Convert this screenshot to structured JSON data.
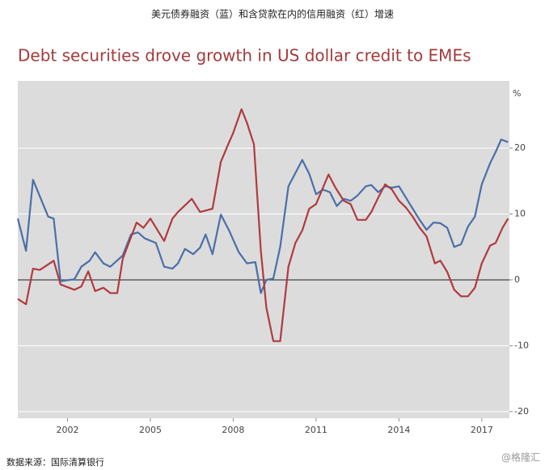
{
  "chart_data": {
    "type": "line",
    "caption": "美元债券融资（蓝）和含贷款在内的信用融资（红）增速",
    "title": "Debt securities drove growth in US dollar credit to EMEs",
    "y_label": "%",
    "source": "数据来源：国际清算银行",
    "watermark": "@格隆汇",
    "xlim": [
      2000.2,
      2018
    ],
    "xticks": [
      2002,
      2005,
      2008,
      2011,
      2014,
      2017
    ],
    "ylim": [
      -21,
      30.2
    ],
    "yticks": [
      -20,
      -10,
      0,
      10,
      20
    ],
    "grid": true,
    "series": [
      {
        "color": "#4a6fa8",
        "x": [
          2000.2,
          2000.5,
          2000.75,
          2001.3,
          2001.5,
          2001.75,
          2002.25,
          2002.5,
          2002.8,
          2003.0,
          2003.3,
          2003.55,
          2004.0,
          2004.3,
          2004.55,
          2004.8,
          2005.2,
          2005.5,
          2005.8,
          2006.0,
          2006.25,
          2006.55,
          2006.8,
          2007.0,
          2007.25,
          2007.55,
          2007.85,
          2008.2,
          2008.5,
          2008.8,
          2009.0,
          2009.2,
          2009.45,
          2009.7,
          2010.0,
          2010.5,
          2010.75,
          2011.0,
          2011.25,
          2011.5,
          2011.75,
          2012.0,
          2012.25,
          2012.5,
          2012.8,
          2013.0,
          2013.25,
          2013.5,
          2013.75,
          2014.0,
          2014.25,
          2014.5,
          2014.75,
          2015.0,
          2015.25,
          2015.5,
          2015.75,
          2016.0,
          2016.25,
          2016.5,
          2016.75,
          2017.0,
          2017.3,
          2017.5,
          2017.7,
          2017.95
        ],
        "values": [
          9.3,
          4.4,
          15.2,
          9.6,
          9.3,
          -0.2,
          0.1,
          2.0,
          2.9,
          4.2,
          2.5,
          2.0,
          3.7,
          6.9,
          7.2,
          6.3,
          5.6,
          2.0,
          1.7,
          2.5,
          4.7,
          3.9,
          4.9,
          6.9,
          3.9,
          9.9,
          7.5,
          4.2,
          2.5,
          2.7,
          -2.0,
          0.0,
          0.2,
          5.0,
          14.2,
          18.2,
          16.1,
          13.0,
          13.7,
          13.3,
          11.2,
          12.3,
          12.0,
          12.8,
          14.2,
          14.4,
          13.3,
          14.2,
          14.0,
          14.2,
          12.5,
          10.8,
          9.1,
          7.6,
          8.7,
          8.6,
          7.9,
          5.0,
          5.4,
          8.1,
          9.6,
          14.5,
          17.7,
          19.4,
          21.3,
          20.9
        ]
      },
      {
        "color": "#b03a3e",
        "x": [
          2000.2,
          2000.5,
          2000.75,
          2001.0,
          2001.5,
          2001.75,
          2002.25,
          2002.5,
          2002.75,
          2003.0,
          2003.3,
          2003.55,
          2003.8,
          2004.0,
          2004.5,
          2004.75,
          2005.0,
          2005.5,
          2005.8,
          2006.0,
          2006.5,
          2006.8,
          2007.25,
          2007.55,
          2007.8,
          2008.0,
          2008.3,
          2008.5,
          2008.75,
          2009.0,
          2009.2,
          2009.45,
          2009.7,
          2010.0,
          2010.25,
          2010.5,
          2010.75,
          2011.0,
          2011.2,
          2011.45,
          2011.7,
          2012.0,
          2012.25,
          2012.5,
          2012.8,
          2013.0,
          2013.25,
          2013.5,
          2013.75,
          2014.0,
          2014.25,
          2014.5,
          2014.75,
          2015.0,
          2015.3,
          2015.5,
          2015.75,
          2016.0,
          2016.25,
          2016.5,
          2016.75,
          2017.0,
          2017.3,
          2017.5,
          2017.75,
          2017.95
        ],
        "values": [
          -2.9,
          -3.7,
          1.7,
          1.5,
          2.9,
          -0.7,
          -1.5,
          -1.0,
          1.3,
          -1.7,
          -1.2,
          -2.0,
          -2.0,
          3.2,
          8.7,
          7.9,
          9.3,
          5.9,
          9.3,
          10.3,
          12.3,
          10.3,
          10.8,
          17.9,
          20.4,
          22.3,
          25.9,
          23.8,
          20.6,
          4.4,
          -4.2,
          -9.3,
          -9.3,
          2.0,
          5.6,
          7.5,
          10.8,
          11.5,
          13.5,
          16.0,
          14.0,
          12.0,
          11.5,
          9.1,
          9.1,
          10.3,
          12.5,
          14.5,
          13.7,
          12.0,
          11.0,
          9.6,
          7.9,
          6.6,
          2.5,
          2.9,
          1.2,
          -1.5,
          -2.5,
          -2.5,
          -1.2,
          2.5,
          5.2,
          5.6,
          7.9,
          9.3
        ]
      }
    ]
  }
}
